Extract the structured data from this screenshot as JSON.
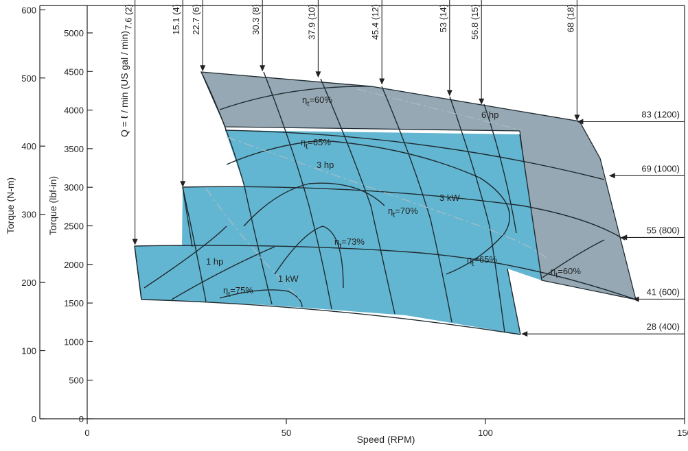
{
  "chart_data": {
    "type": "area",
    "title": "",
    "xlabel": "Speed (RPM)",
    "ylabel": "Torque (lbf-in)",
    "ylabel_secondary": "Torque (N-m)",
    "xlim": [
      0,
      150
    ],
    "ylim_lbfin": [
      0,
      5400
    ],
    "ylim_nm": [
      0,
      610
    ],
    "xticks": [
      "0",
      "50",
      "100",
      "150"
    ],
    "xtick_values": [
      0,
      50,
      100,
      150
    ],
    "yticks_lbfin": [
      "0",
      "500",
      "1000",
      "1500",
      "2000",
      "2500",
      "3000",
      "3500",
      "4000",
      "4500",
      "5000"
    ],
    "ytick_values_lbfin": [
      0,
      500,
      1000,
      1500,
      2000,
      2500,
      3000,
      3500,
      4000,
      4500,
      5000
    ],
    "yticks_nm": [
      "0",
      "100",
      "200",
      "300",
      "400",
      "500",
      "600"
    ],
    "ytick_values_nm": [
      0,
      100,
      200,
      300,
      400,
      500,
      600
    ],
    "flow_label": "Q = ℓ / min (US gal / min)",
    "flow_lines": [
      {
        "label": "7.6 (2)",
        "speed": 12,
        "torque_end": 2250
      },
      {
        "label": "15.1 (4)",
        "speed": 24,
        "torque_end": 3000
      },
      {
        "label": "22.7 (6)",
        "speed": 29,
        "torque_end": 4500
      },
      {
        "label": "30.3 (8)",
        "speed": 44,
        "torque_end": 4500
      },
      {
        "label": "37.9 (10)",
        "speed": 58,
        "torque_end": 4420
      },
      {
        "label": "45.4 (12)",
        "speed": 74,
        "torque_end": 4330
      },
      {
        "label": "53 (14)",
        "speed": 91,
        "torque_end": 4180
      },
      {
        "label": "56.8 (15)",
        "speed": 99,
        "torque_end": 4070
      },
      {
        "label": "68 (18)",
        "speed": 123,
        "torque_end": 3860
      }
    ],
    "pressure_lines": [
      {
        "label": "83 (1200)",
        "torque": 3850,
        "speed_end": 123
      },
      {
        "label": "69 (1000)",
        "torque": 3150,
        "speed_end": 131
      },
      {
        "label": "55 (800)",
        "torque": 2350,
        "speed_end": 134
      },
      {
        "label": "41 (600)",
        "torque": 1550,
        "speed_end": 137
      },
      {
        "label": "28 (400)",
        "torque": 1100,
        "speed_end": 109
      }
    ],
    "efficiency_labels": [
      "ηt=60%",
      "ηt=65%",
      "ηt=70%",
      "ηt=73%",
      "ηt=75%",
      "ηt=65%",
      "ηt=60%"
    ],
    "power_labels": [
      "6 hp",
      "3 hp",
      "3 kW",
      "1 hp",
      "1 kW"
    ],
    "regions": [
      {
        "name": "continuous",
        "color": "#62b6d1"
      },
      {
        "name": "intermittent",
        "color": "#95a8b3"
      }
    ]
  }
}
